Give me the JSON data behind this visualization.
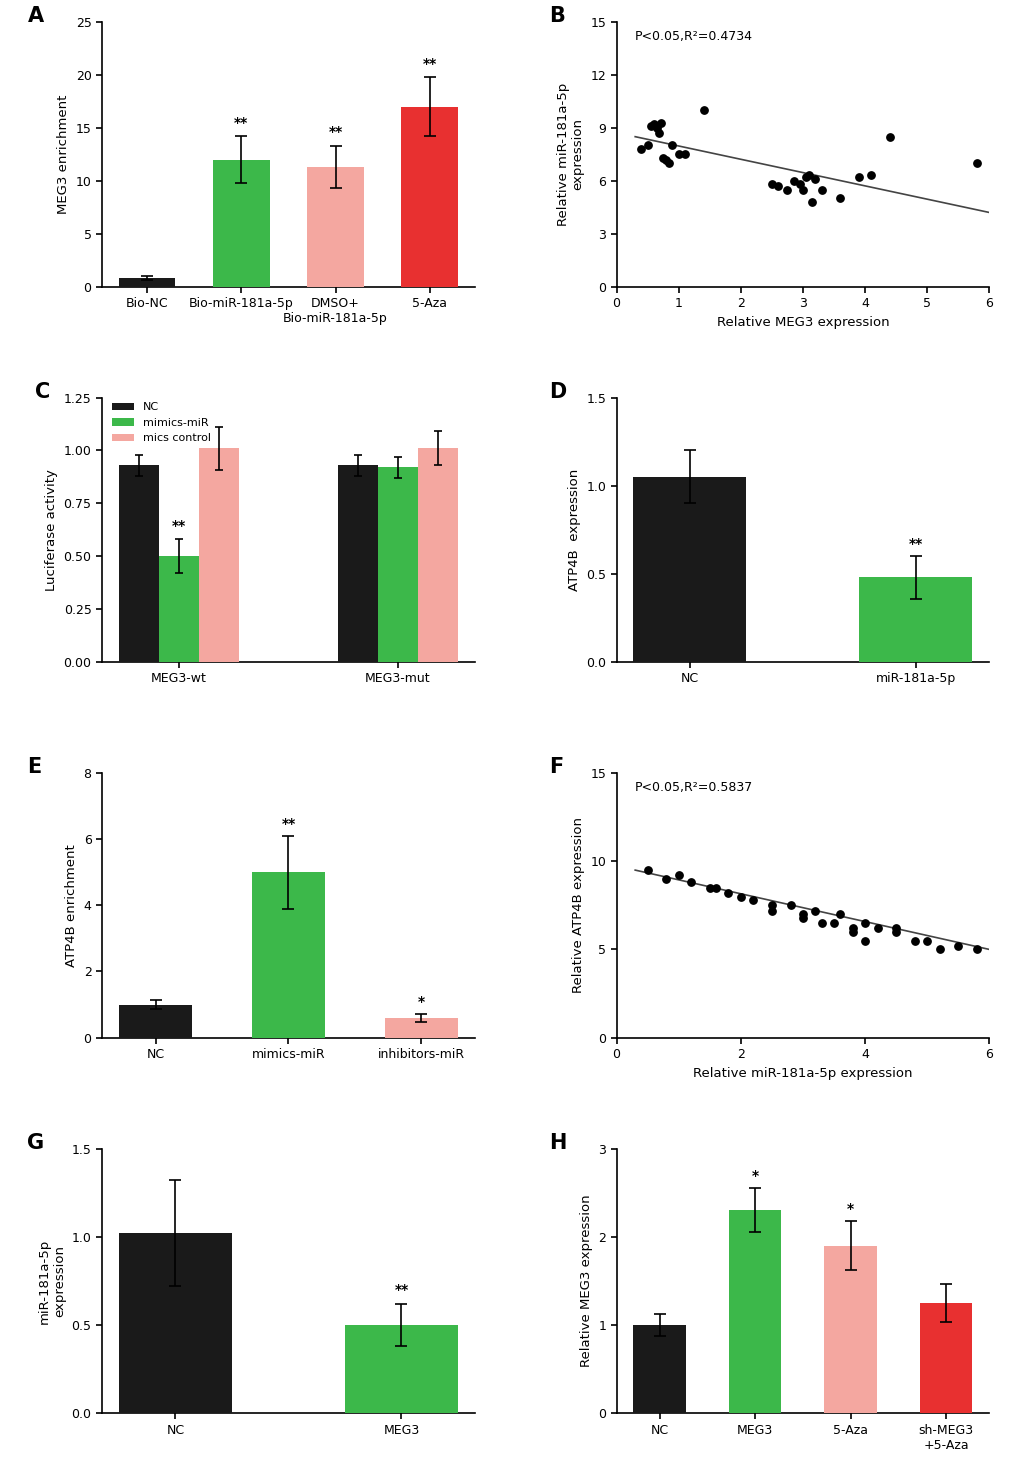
{
  "A": {
    "categories": [
      "Bio-NC",
      "Bio-miR-181a-5p",
      "DMSO+\nBio-miR-181a-5p",
      "5-Aza"
    ],
    "values": [
      0.8,
      12.0,
      11.3,
      17.0
    ],
    "errors": [
      0.2,
      2.2,
      2.0,
      2.8
    ],
    "colors": [
      "#1a1a1a",
      "#3cb84a",
      "#f4a7a0",
      "#e83030"
    ],
    "ylabel": "MEG3 enrichment",
    "ylim": [
      0,
      25
    ],
    "yticks": [
      0,
      5,
      10,
      15,
      20,
      25
    ],
    "sig": [
      "",
      "**",
      "**",
      "**"
    ]
  },
  "B": {
    "scatter_x": [
      0.4,
      0.5,
      0.55,
      0.6,
      0.65,
      0.68,
      0.72,
      0.75,
      0.8,
      0.85,
      0.9,
      1.0,
      1.1,
      1.4,
      2.5,
      2.6,
      2.75,
      2.85,
      2.95,
      3.0,
      3.05,
      3.1,
      3.15,
      3.2,
      3.3,
      3.6,
      3.9,
      4.1,
      4.4,
      5.8
    ],
    "scatter_y": [
      7.8,
      8.0,
      9.1,
      9.2,
      9.0,
      8.7,
      9.3,
      7.3,
      7.2,
      7.0,
      8.0,
      7.5,
      7.5,
      10.0,
      5.8,
      5.7,
      5.5,
      6.0,
      5.8,
      5.5,
      6.2,
      6.3,
      4.8,
      6.1,
      5.5,
      5.0,
      6.2,
      6.3,
      8.5,
      7.0
    ],
    "line_x": [
      0.3,
      6.0
    ],
    "line_y": [
      8.5,
      4.2
    ],
    "xlabel": "Relative MEG3 expression",
    "ylabel": "Relative miR-181a-5p\nexpression",
    "xlim": [
      0,
      6
    ],
    "ylim": [
      0,
      15
    ],
    "xticks": [
      0,
      1,
      2,
      3,
      4,
      5,
      6
    ],
    "yticks": [
      0,
      3,
      6,
      9,
      12,
      15
    ],
    "annotation": "P<0.05,R²=0.4734"
  },
  "C": {
    "groups": [
      "MEG3-wt",
      "MEG3-mut"
    ],
    "nc_values": [
      0.93,
      0.93
    ],
    "mimic_values": [
      0.5,
      0.92
    ],
    "control_values": [
      1.01,
      1.01
    ],
    "nc_errors": [
      0.05,
      0.05
    ],
    "mimic_errors": [
      0.08,
      0.05
    ],
    "control_errors": [
      0.1,
      0.08
    ],
    "colors_nc": "#1a1a1a",
    "colors_mimic": "#3cb84a",
    "colors_ctrl": "#f4a7a0",
    "ylabel": "Luciferase activity",
    "ylim": [
      0,
      1.25
    ],
    "yticks": [
      0,
      0.25,
      0.5,
      0.75,
      1.0,
      1.25
    ],
    "sig_mimic": [
      "**",
      ""
    ]
  },
  "D": {
    "categories": [
      "NC",
      "miR-181a-5p"
    ],
    "values": [
      1.05,
      0.48
    ],
    "errors": [
      0.15,
      0.12
    ],
    "colors": [
      "#1a1a1a",
      "#3cb84a"
    ],
    "ylabel": "ATP4B  expression",
    "ylim": [
      0,
      1.5
    ],
    "yticks": [
      0,
      0.5,
      1.0,
      1.5
    ],
    "sig": [
      "",
      "**"
    ]
  },
  "E": {
    "categories": [
      "NC",
      "mimics-miR",
      "inhibitors-miR"
    ],
    "values": [
      1.0,
      5.0,
      0.6
    ],
    "errors": [
      0.15,
      1.1,
      0.12
    ],
    "colors": [
      "#1a1a1a",
      "#3cb84a",
      "#f4a7a0"
    ],
    "ylabel": "ATP4B enrichment",
    "ylim": [
      0,
      8
    ],
    "yticks": [
      0,
      2,
      4,
      6,
      8
    ],
    "sig": [
      "",
      "**",
      "*"
    ]
  },
  "F": {
    "scatter_x": [
      0.5,
      0.8,
      1.0,
      1.2,
      1.5,
      1.8,
      2.0,
      2.2,
      2.5,
      2.5,
      2.8,
      3.0,
      3.0,
      3.2,
      3.3,
      3.5,
      3.6,
      3.8,
      3.8,
      4.0,
      4.0,
      4.2,
      4.5,
      4.8,
      5.0,
      5.2,
      5.5,
      5.8,
      1.6,
      4.5
    ],
    "scatter_y": [
      9.5,
      9.0,
      9.2,
      8.8,
      8.5,
      8.2,
      8.0,
      7.8,
      7.5,
      7.2,
      7.5,
      6.8,
      7.0,
      7.2,
      6.5,
      6.5,
      7.0,
      6.2,
      6.0,
      6.5,
      5.5,
      6.2,
      6.0,
      5.5,
      5.5,
      5.0,
      5.2,
      5.0,
      8.5,
      6.2
    ],
    "line_x": [
      0.3,
      6.0
    ],
    "line_y": [
      9.5,
      5.0
    ],
    "xlabel": "Relative miR-181a-5p expression",
    "ylabel": "Relative ATP4B expression",
    "xlim": [
      0,
      6
    ],
    "ylim": [
      0,
      15
    ],
    "xticks": [
      0,
      2,
      4,
      6
    ],
    "yticks": [
      0,
      5,
      10,
      15
    ],
    "annotation": "P<0.05,R²=0.5837"
  },
  "G": {
    "categories": [
      "NC",
      "MEG3"
    ],
    "values": [
      1.02,
      0.5
    ],
    "errors": [
      0.3,
      0.12
    ],
    "colors": [
      "#1a1a1a",
      "#3cb84a"
    ],
    "ylabel": "miR-181a-5p\nexpression",
    "ylim": [
      0,
      1.5
    ],
    "yticks": [
      0.0,
      0.5,
      1.0,
      1.5
    ],
    "sig": [
      "",
      "**"
    ]
  },
  "H": {
    "categories": [
      "NC",
      "MEG3",
      "5-Aza",
      "sh-MEG3\n+5-Aza"
    ],
    "values": [
      1.0,
      2.3,
      1.9,
      1.25
    ],
    "errors": [
      0.12,
      0.25,
      0.28,
      0.22
    ],
    "colors": [
      "#1a1a1a",
      "#3cb84a",
      "#f4a7a0",
      "#e83030"
    ],
    "ylabel": "Relative MEG3 expression",
    "ylim": [
      0,
      3
    ],
    "yticks": [
      0,
      1,
      2,
      3
    ],
    "sig": [
      "",
      "*",
      "*",
      ""
    ]
  }
}
